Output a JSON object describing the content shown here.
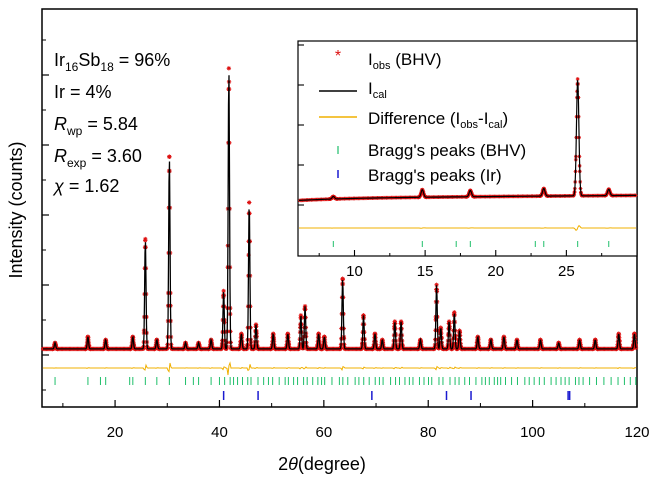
{
  "chart_data": [
    {
      "type": "line",
      "description_role": "main Rietveld refinement plot",
      "xlabel_prefix": "2",
      "xlabel_symbol": "θ",
      "xlabel_suffix": "(degree)",
      "ylabel": "Intensity (counts)",
      "xlim": [
        6,
        120
      ],
      "xticks": [
        20,
        40,
        60,
        80,
        100,
        120
      ],
      "yticks_labeled": false,
      "colors": {
        "observed": "#dd1111",
        "calculated": "#000000",
        "difference": "#f0b000",
        "bragg_bhv": "#1fbf6a",
        "bragg_ir": "#1a1ad0"
      },
      "stats": {
        "phase1_main": "Ir",
        "phase1_sub1": "16",
        "phase1_mid": "Sb",
        "phase1_sub2": "18",
        "phase1_value": " = 96%",
        "phase2": "Ir = 4%",
        "rwp_main": "R",
        "rwp_sub": "wp",
        "rwp_value": " = 5.84",
        "rexp_main": "R",
        "rexp_sub": "exp",
        "rexp_value": " = 3.60",
        "chi_symbol": "χ",
        "chi_value": " = 1.62"
      },
      "background_level": 0.02,
      "peaks": [
        {
          "x": 8.5,
          "y": 0.02
        },
        {
          "x": 14.8,
          "y": 0.04
        },
        {
          "x": 18.2,
          "y": 0.03
        },
        {
          "x": 23.4,
          "y": 0.04
        },
        {
          "x": 25.8,
          "y": 0.36
        },
        {
          "x": 28.0,
          "y": 0.03
        },
        {
          "x": 30.4,
          "y": 0.63
        },
        {
          "x": 33.5,
          "y": 0.02
        },
        {
          "x": 36.0,
          "y": 0.02
        },
        {
          "x": 38.4,
          "y": 0.03
        },
        {
          "x": 40.8,
          "y": 0.19
        },
        {
          "x": 41.8,
          "y": 0.92
        },
        {
          "x": 44.2,
          "y": 0.05
        },
        {
          "x": 45.7,
          "y": 0.48
        },
        {
          "x": 47.0,
          "y": 0.08
        },
        {
          "x": 50.3,
          "y": 0.05
        },
        {
          "x": 53.1,
          "y": 0.05
        },
        {
          "x": 55.6,
          "y": 0.11
        },
        {
          "x": 56.4,
          "y": 0.14
        },
        {
          "x": 59.0,
          "y": 0.05
        },
        {
          "x": 60.1,
          "y": 0.04
        },
        {
          "x": 63.6,
          "y": 0.23
        },
        {
          "x": 67.6,
          "y": 0.11
        },
        {
          "x": 69.8,
          "y": 0.05
        },
        {
          "x": 71.2,
          "y": 0.03
        },
        {
          "x": 73.6,
          "y": 0.09
        },
        {
          "x": 74.8,
          "y": 0.09
        },
        {
          "x": 78.5,
          "y": 0.03
        },
        {
          "x": 81.6,
          "y": 0.21
        },
        {
          "x": 82.4,
          "y": 0.07
        },
        {
          "x": 84.0,
          "y": 0.09
        },
        {
          "x": 85.0,
          "y": 0.12
        },
        {
          "x": 86.0,
          "y": 0.06
        },
        {
          "x": 89.5,
          "y": 0.04
        },
        {
          "x": 92.0,
          "y": 0.03
        },
        {
          "x": 94.5,
          "y": 0.04
        },
        {
          "x": 97.0,
          "y": 0.03
        },
        {
          "x": 101.5,
          "y": 0.03
        },
        {
          "x": 105.0,
          "y": 0.02
        },
        {
          "x": 109.0,
          "y": 0.03
        },
        {
          "x": 112.0,
          "y": 0.03
        },
        {
          "x": 116.5,
          "y": 0.05
        },
        {
          "x": 119.5,
          "y": 0.05
        }
      ],
      "bragg_ir_positions": [
        40.8,
        47.4,
        69.2,
        83.5,
        88.2,
        106.8,
        107.1
      ]
    },
    {
      "type": "line",
      "description_role": "inset zoom of low-angle region",
      "xlim": [
        6,
        30
      ],
      "xticks": [
        10,
        15,
        20,
        25
      ],
      "legend": [
        {
          "key": "obs",
          "marker": "*",
          "main": "I",
          "sub": "obs",
          "suffix": " (BHV)"
        },
        {
          "key": "cal",
          "marker": "line",
          "main": "I",
          "sub": "cal",
          "suffix": ""
        },
        {
          "key": "diff",
          "marker": "line",
          "main": "Difference (I",
          "sub1": "obs",
          "mid": "-I",
          "sub2": "cal",
          "suffix": ")"
        },
        {
          "key": "bragg_bhv",
          "marker": "tick",
          "text": "Bragg's peaks (BHV)"
        },
        {
          "key": "bragg_ir",
          "marker": "tick",
          "text": "Bragg's peaks (Ir)"
        }
      ],
      "peaks": [
        {
          "x": 8.5,
          "y": 0.02
        },
        {
          "x": 14.8,
          "y": 0.06
        },
        {
          "x": 18.2,
          "y": 0.05
        },
        {
          "x": 23.4,
          "y": 0.06
        },
        {
          "x": 25.8,
          "y": 0.92
        },
        {
          "x": 28.0,
          "y": 0.05
        }
      ],
      "bragg_bhv_positions": [
        8.5,
        14.8,
        17.2,
        18.2,
        22.8,
        23.4,
        25.8,
        28.0
      ]
    }
  ]
}
